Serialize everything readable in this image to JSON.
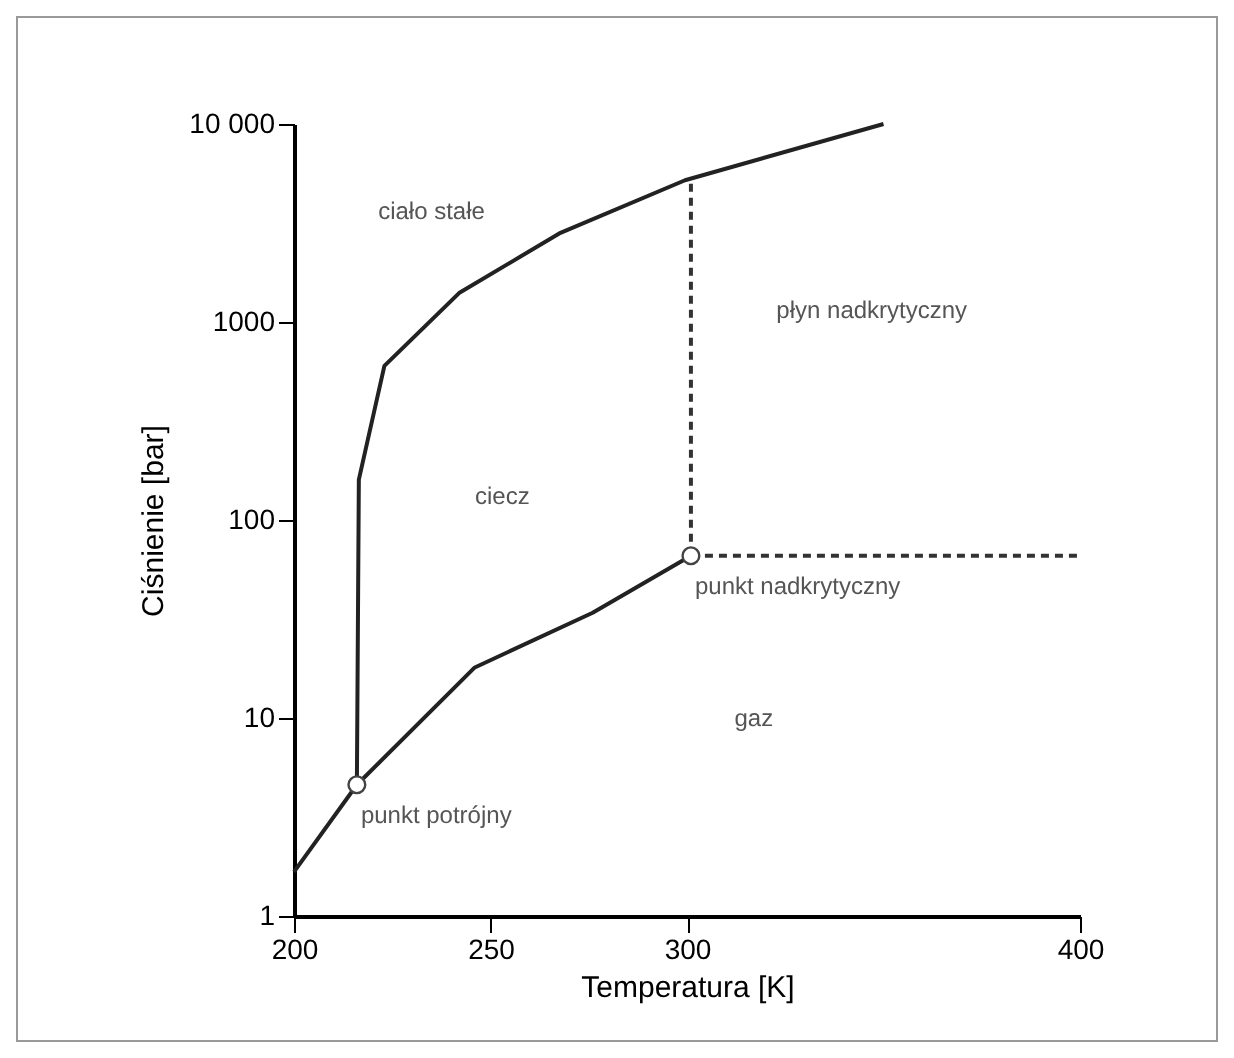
{
  "chart_data": {
    "type": "line",
    "xlabel": "Temperatura [K]",
    "ylabel": "Ciśnienie [bar]",
    "log": "y",
    "xlim": [
      200,
      400
    ],
    "xticks": [
      200,
      250,
      300,
      400
    ],
    "ylim": [
      1,
      10000
    ],
    "yticks": [
      1,
      10,
      100,
      1000,
      {
        "value": 10000,
        "label": "10 000"
      }
    ],
    "series": [
      {
        "color": "#222222",
        "x": [
          200,
          216,
          216.5,
          223,
          242,
          267.5,
          299.5,
          350
        ],
        "values": [
          1.67,
          4.6,
          160,
          600,
          1400,
          2800,
          5200,
          10000
        ]
      },
      {
        "color": "#222222",
        "x": [
          216,
          246,
          276,
          301
        ],
        "values": [
          4.6,
          18,
          34,
          66
        ]
      },
      {
        "color": "#333333",
        "line_style": "dashed",
        "x": [
          301,
          301
        ],
        "values": [
          66,
          5200
        ]
      },
      {
        "color": "#333333",
        "line_style": "dashed",
        "x": [
          301,
          400
        ],
        "values": [
          66,
          66
        ]
      },
      {
        "type": "scatter",
        "color": "#ffffff",
        "marker": "circle",
        "x": [
          216,
          301
        ],
        "values": [
          4.6,
          66
        ]
      }
    ],
    "annotations": [
      "ciało stałe",
      "ciecz",
      "płyn nadkrytyczny",
      "gaz",
      {
        "text": "punkt nadkrytyczny",
        "x": 301,
        "y": 66
      },
      {
        "text": "punkt potrójny",
        "x": 216,
        "y": 4.6
      }
    ]
  }
}
